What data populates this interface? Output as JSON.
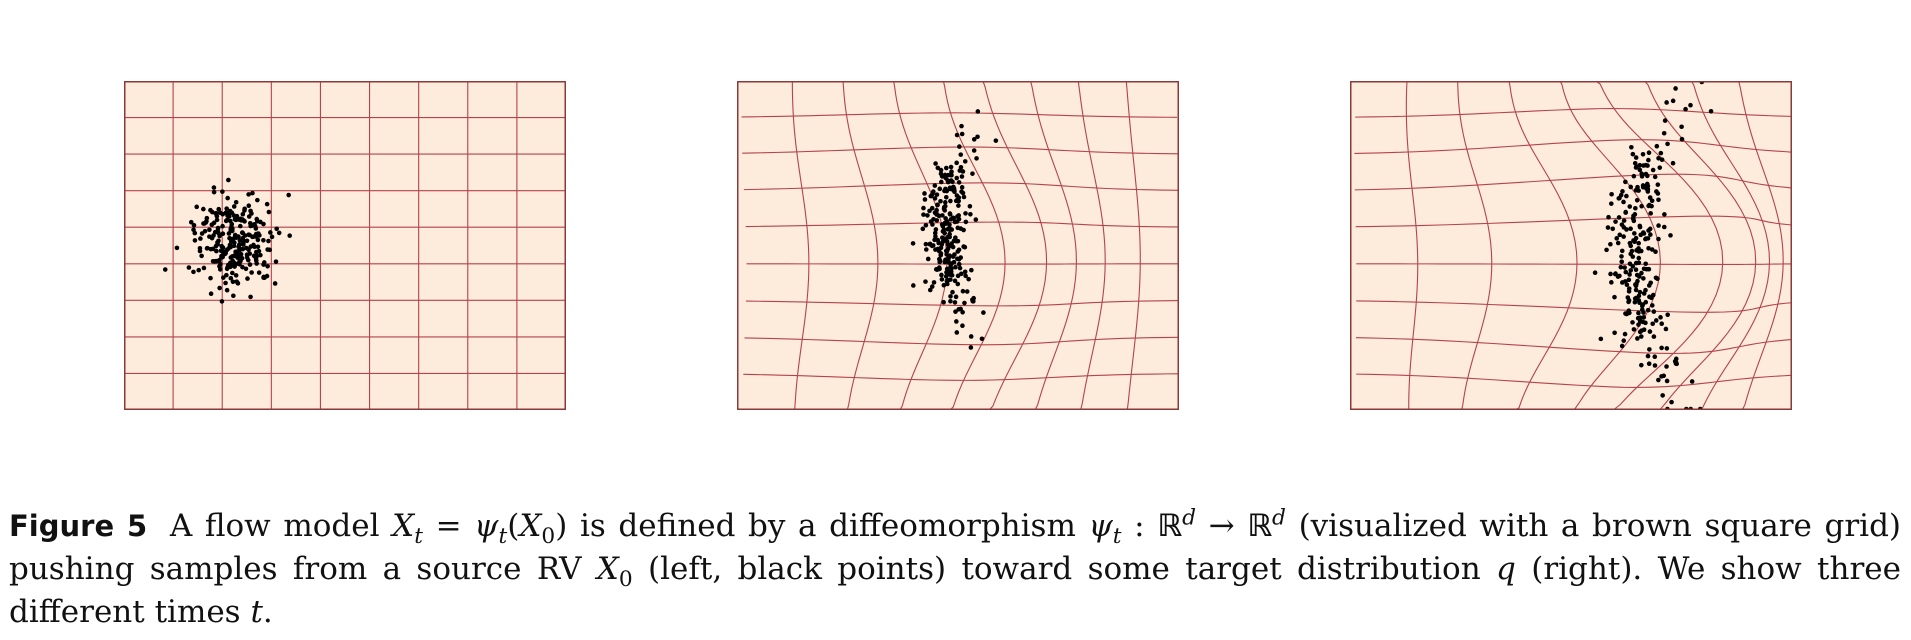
{
  "colors": {
    "panel_fill": "#fdebdc",
    "grid_line": "#b5434a",
    "frame": "#8b3a3a",
    "points": "#000000"
  },
  "panels": [
    {
      "id": "left",
      "description_word": "left"
    },
    {
      "id": "middle"
    },
    {
      "id": "right",
      "description_word": "right"
    }
  ],
  "caption": {
    "label": "Figure 5",
    "t1": " A flow model ",
    "m_xt": "X",
    "m_xt_sub": "t",
    "m_eq": " = ",
    "m_psi": "ψ",
    "m_psi_sub": "t",
    "m_paren_open": "(",
    "m_x0": "X",
    "m_x0_sub": "0",
    "m_paren_close": ")",
    "t2": " is defined by a diffeomorphism ",
    "m2_psi": "ψ",
    "m2_psi_sub": "t",
    "m2_colon": " : ",
    "m2_r1": "ℝ",
    "m2_d1": "d",
    "m2_arrow": " → ",
    "m2_r2": "ℝ",
    "m2_d2": "d",
    "t3": " (visualized with a brown square grid) pushing samples from a source RV ",
    "m3_x": "X",
    "m3_sub": "0",
    "t4": " (left, black points) toward some target distribution ",
    "m4_q": "q",
    "t5": " (right). We show three different times ",
    "m5_t": "t",
    "t6": "."
  }
}
